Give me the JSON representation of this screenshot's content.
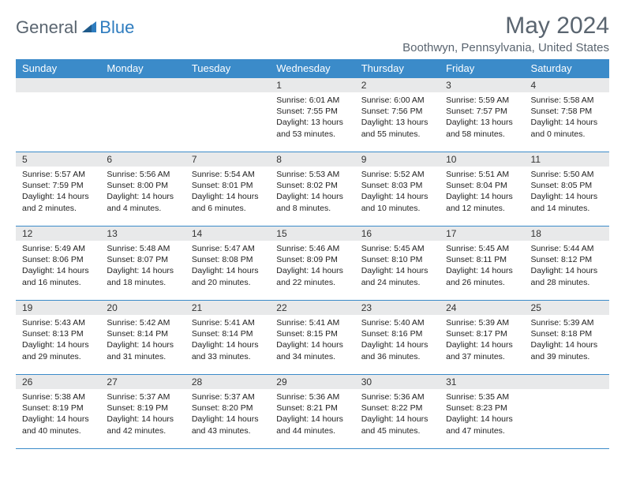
{
  "logo": {
    "general": "General",
    "blue": "Blue"
  },
  "title": "May 2024",
  "location": "Boothwyn, Pennsylvania, United States",
  "colors": {
    "header_bg": "#3b8bc9",
    "header_text": "#ffffff",
    "daynum_bg": "#e8e9ea",
    "border": "#3b8bc9",
    "logo_gray": "#5a6570",
    "logo_blue": "#2e7cbf"
  },
  "weekdays": [
    "Sunday",
    "Monday",
    "Tuesday",
    "Wednesday",
    "Thursday",
    "Friday",
    "Saturday"
  ],
  "weeks": [
    [
      null,
      null,
      null,
      {
        "d": "1",
        "sr": "6:01 AM",
        "ss": "7:55 PM",
        "dl": "13 hours and 53 minutes."
      },
      {
        "d": "2",
        "sr": "6:00 AM",
        "ss": "7:56 PM",
        "dl": "13 hours and 55 minutes."
      },
      {
        "d": "3",
        "sr": "5:59 AM",
        "ss": "7:57 PM",
        "dl": "13 hours and 58 minutes."
      },
      {
        "d": "4",
        "sr": "5:58 AM",
        "ss": "7:58 PM",
        "dl": "14 hours and 0 minutes."
      }
    ],
    [
      {
        "d": "5",
        "sr": "5:57 AM",
        "ss": "7:59 PM",
        "dl": "14 hours and 2 minutes."
      },
      {
        "d": "6",
        "sr": "5:56 AM",
        "ss": "8:00 PM",
        "dl": "14 hours and 4 minutes."
      },
      {
        "d": "7",
        "sr": "5:54 AM",
        "ss": "8:01 PM",
        "dl": "14 hours and 6 minutes."
      },
      {
        "d": "8",
        "sr": "5:53 AM",
        "ss": "8:02 PM",
        "dl": "14 hours and 8 minutes."
      },
      {
        "d": "9",
        "sr": "5:52 AM",
        "ss": "8:03 PM",
        "dl": "14 hours and 10 minutes."
      },
      {
        "d": "10",
        "sr": "5:51 AM",
        "ss": "8:04 PM",
        "dl": "14 hours and 12 minutes."
      },
      {
        "d": "11",
        "sr": "5:50 AM",
        "ss": "8:05 PM",
        "dl": "14 hours and 14 minutes."
      }
    ],
    [
      {
        "d": "12",
        "sr": "5:49 AM",
        "ss": "8:06 PM",
        "dl": "14 hours and 16 minutes."
      },
      {
        "d": "13",
        "sr": "5:48 AM",
        "ss": "8:07 PM",
        "dl": "14 hours and 18 minutes."
      },
      {
        "d": "14",
        "sr": "5:47 AM",
        "ss": "8:08 PM",
        "dl": "14 hours and 20 minutes."
      },
      {
        "d": "15",
        "sr": "5:46 AM",
        "ss": "8:09 PM",
        "dl": "14 hours and 22 minutes."
      },
      {
        "d": "16",
        "sr": "5:45 AM",
        "ss": "8:10 PM",
        "dl": "14 hours and 24 minutes."
      },
      {
        "d": "17",
        "sr": "5:45 AM",
        "ss": "8:11 PM",
        "dl": "14 hours and 26 minutes."
      },
      {
        "d": "18",
        "sr": "5:44 AM",
        "ss": "8:12 PM",
        "dl": "14 hours and 28 minutes."
      }
    ],
    [
      {
        "d": "19",
        "sr": "5:43 AM",
        "ss": "8:13 PM",
        "dl": "14 hours and 29 minutes."
      },
      {
        "d": "20",
        "sr": "5:42 AM",
        "ss": "8:14 PM",
        "dl": "14 hours and 31 minutes."
      },
      {
        "d": "21",
        "sr": "5:41 AM",
        "ss": "8:14 PM",
        "dl": "14 hours and 33 minutes."
      },
      {
        "d": "22",
        "sr": "5:41 AM",
        "ss": "8:15 PM",
        "dl": "14 hours and 34 minutes."
      },
      {
        "d": "23",
        "sr": "5:40 AM",
        "ss": "8:16 PM",
        "dl": "14 hours and 36 minutes."
      },
      {
        "d": "24",
        "sr": "5:39 AM",
        "ss": "8:17 PM",
        "dl": "14 hours and 37 minutes."
      },
      {
        "d": "25",
        "sr": "5:39 AM",
        "ss": "8:18 PM",
        "dl": "14 hours and 39 minutes."
      }
    ],
    [
      {
        "d": "26",
        "sr": "5:38 AM",
        "ss": "8:19 PM",
        "dl": "14 hours and 40 minutes."
      },
      {
        "d": "27",
        "sr": "5:37 AM",
        "ss": "8:19 PM",
        "dl": "14 hours and 42 minutes."
      },
      {
        "d": "28",
        "sr": "5:37 AM",
        "ss": "8:20 PM",
        "dl": "14 hours and 43 minutes."
      },
      {
        "d": "29",
        "sr": "5:36 AM",
        "ss": "8:21 PM",
        "dl": "14 hours and 44 minutes."
      },
      {
        "d": "30",
        "sr": "5:36 AM",
        "ss": "8:22 PM",
        "dl": "14 hours and 45 minutes."
      },
      {
        "d": "31",
        "sr": "5:35 AM",
        "ss": "8:23 PM",
        "dl": "14 hours and 47 minutes."
      },
      null
    ]
  ],
  "labels": {
    "sunrise": "Sunrise: ",
    "sunset": "Sunset: ",
    "daylight": "Daylight: "
  }
}
